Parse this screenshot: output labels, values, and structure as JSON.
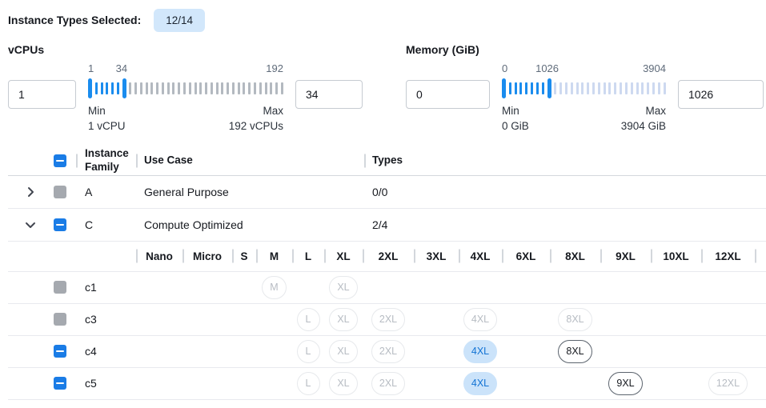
{
  "colors": {
    "accent": "#1a7ce6",
    "slider_blue": "#1a8cee",
    "badge_bg": "#d2e7fb",
    "selected_pill_bg": "#cbe3fa",
    "selected_pill_text": "#1273d4",
    "disabled_checkbox": "#a5a9af"
  },
  "topbar": {
    "label": "Instance Types Selected:",
    "badge": "12/14"
  },
  "filters": [
    {
      "label": "vCPUs",
      "min_input": "1",
      "max_input": "34",
      "scale_start": "1",
      "scale_mid": "34",
      "scale_end": "192",
      "min_label": "Min",
      "min_value": "1 vCPU",
      "max_label": "Max",
      "max_value": "192 vCPUs",
      "slider": {
        "total_ticks": 36,
        "handle2_index": 6,
        "unselected_tick_color": "#b3b9c0"
      }
    },
    {
      "label": "Memory (GiB)",
      "min_input": "0",
      "max_input": "1026",
      "scale_start": "0",
      "scale_mid": "1026",
      "scale_end": "3904",
      "min_label": "Min",
      "min_value": "0 GiB",
      "max_label": "Max",
      "max_value": "3904 GiB",
      "slider": {
        "total_ticks": 30,
        "handle2_index": 8,
        "unselected_tick_color": "#cdd9f0"
      }
    }
  ],
  "table": {
    "headers": {
      "instance_family": "Instance Family",
      "use_case": "Use Case",
      "types": "Types"
    },
    "family_rows": [
      {
        "family": "A",
        "use_case": "General Purpose",
        "types": "0/0",
        "expanded": false,
        "checkbox": "disabled"
      },
      {
        "family": "C",
        "use_case": "Compute Optimized",
        "types": "2/4",
        "expanded": true,
        "checkbox": "indeterminate"
      }
    ],
    "size_columns": [
      "Nano",
      "Micro",
      "S",
      "M",
      "L",
      "XL",
      "2XL",
      "3XL",
      "4XL",
      "6XL",
      "8XL",
      "9XL",
      "10XL",
      "12XL"
    ],
    "type_rows": [
      {
        "name": "c1",
        "checkbox": "disabled",
        "pills": [
          {
            "size": "M",
            "state": "disabled"
          },
          {
            "size": "XL",
            "state": "disabled"
          }
        ]
      },
      {
        "name": "c3",
        "checkbox": "disabled",
        "pills": [
          {
            "size": "L",
            "state": "disabled"
          },
          {
            "size": "XL",
            "state": "disabled"
          },
          {
            "size": "2XL",
            "state": "disabled"
          },
          {
            "size": "4XL",
            "state": "disabled"
          },
          {
            "size": "8XL",
            "state": "disabled"
          }
        ]
      },
      {
        "name": "c4",
        "checkbox": "indeterminate",
        "pills": [
          {
            "size": "L",
            "state": "disabled"
          },
          {
            "size": "XL",
            "state": "disabled"
          },
          {
            "size": "2XL",
            "state": "disabled"
          },
          {
            "size": "4XL",
            "state": "selected"
          },
          {
            "size": "8XL",
            "state": "enabled"
          }
        ]
      },
      {
        "name": "c5",
        "checkbox": "indeterminate",
        "pills": [
          {
            "size": "L",
            "state": "disabled"
          },
          {
            "size": "XL",
            "state": "disabled"
          },
          {
            "size": "2XL",
            "state": "disabled"
          },
          {
            "size": "4XL",
            "state": "selected"
          },
          {
            "size": "9XL",
            "state": "enabled"
          },
          {
            "size": "12XL",
            "state": "disabled"
          }
        ]
      }
    ]
  }
}
